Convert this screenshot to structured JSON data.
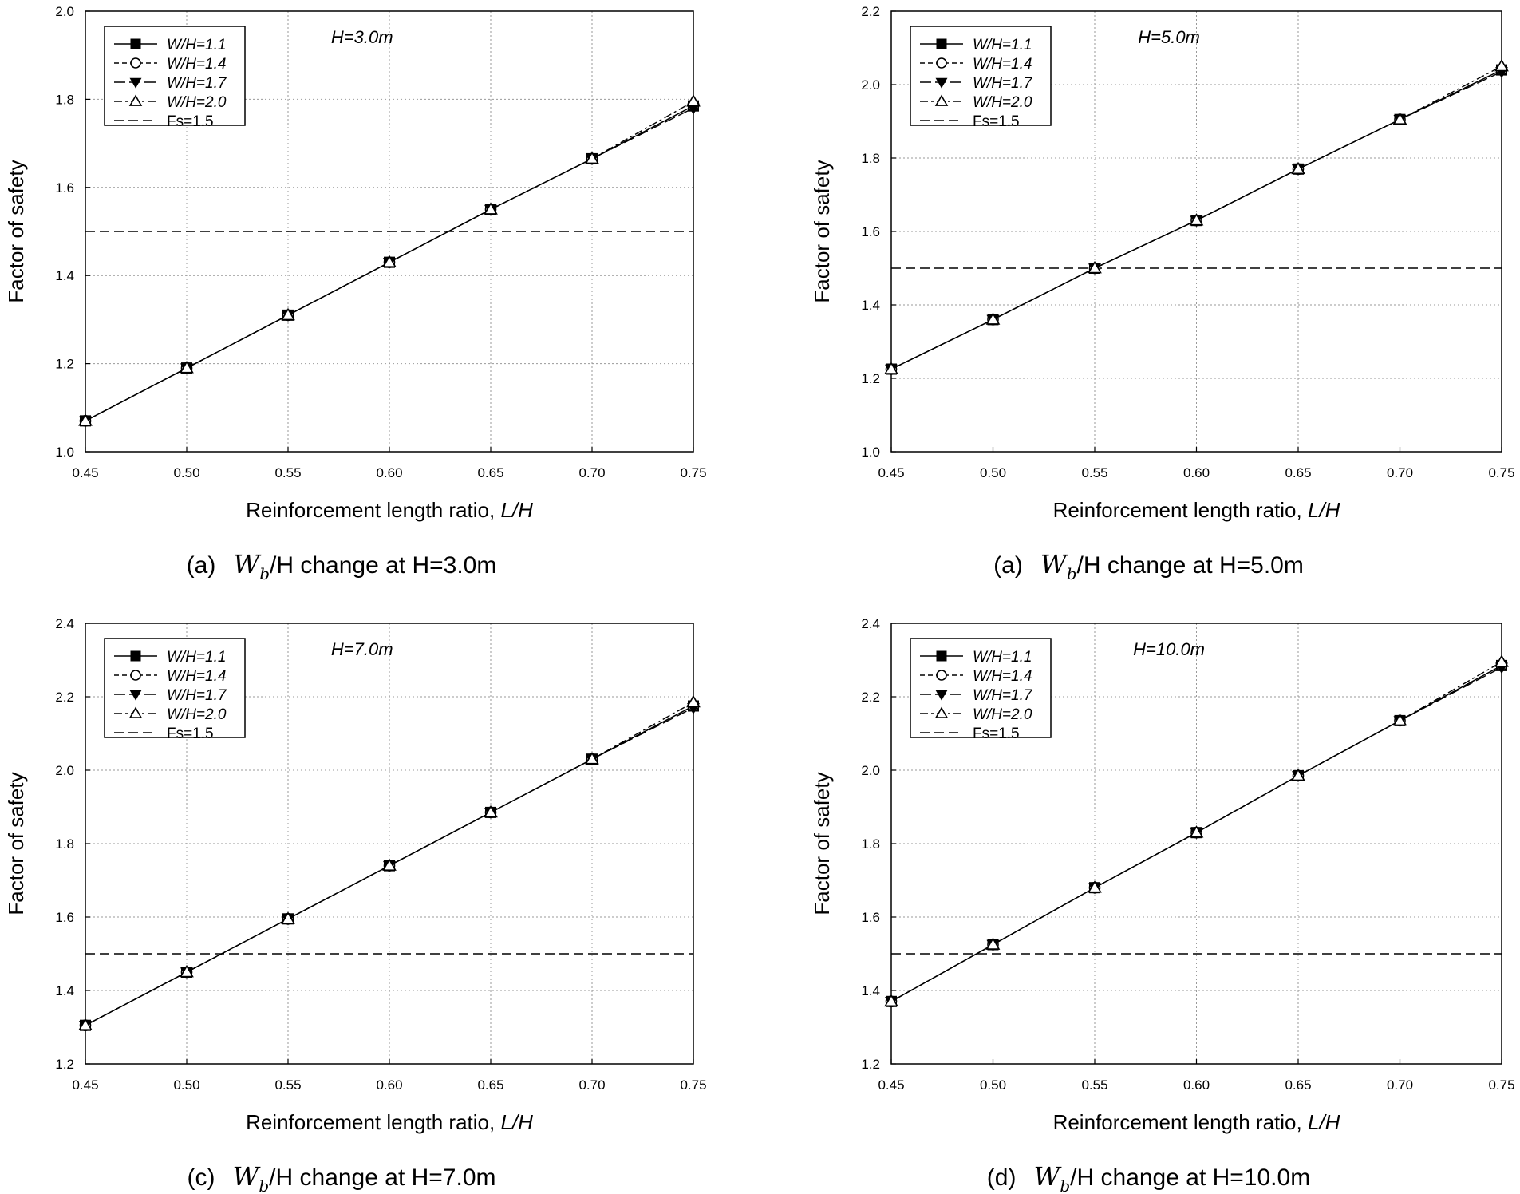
{
  "chart_data": [
    {
      "type": "line",
      "caption_prefix": "(a)",
      "caption_sub": "b",
      "caption_rest": "/H change at H=3.0m",
      "caption_w": "W",
      "height_label": "H=3.0m",
      "xlabel": "Reinforcement length ratio, ",
      "xlabel_italic": "L/H",
      "ylabel": "Factor of safety",
      "xlim": [
        0.45,
        0.75
      ],
      "ylim": [
        1.0,
        2.0
      ],
      "x_ticks": [
        "0.45",
        "0.50",
        "0.55",
        "0.60",
        "0.65",
        "0.70",
        "0.75"
      ],
      "y_ticks": [
        "1.0",
        "1.2",
        "1.4",
        "1.6",
        "1.8",
        "2.0"
      ],
      "x": [
        0.45,
        0.5,
        0.55,
        0.6,
        0.65,
        0.7,
        0.75
      ],
      "series": [
        {
          "name": "W/H=1.1",
          "marker": "square-filled",
          "values": [
            1.07,
            1.19,
            1.31,
            1.43,
            1.55,
            1.665,
            1.785
          ]
        },
        {
          "name": "W/H=1.4",
          "marker": "circle-open",
          "values": [
            1.07,
            1.19,
            1.31,
            1.43,
            1.55,
            1.665,
            1.785
          ]
        },
        {
          "name": "W/H=1.7",
          "marker": "triangle-down-filled",
          "values": [
            1.07,
            1.19,
            1.31,
            1.43,
            1.55,
            1.665,
            1.78
          ]
        },
        {
          "name": "W/H=2.0",
          "marker": "triangle-up-open",
          "values": [
            1.07,
            1.19,
            1.31,
            1.43,
            1.55,
            1.665,
            1.795
          ]
        }
      ],
      "reference": {
        "name": "Fs=1.5",
        "value": 1.5
      }
    },
    {
      "type": "line",
      "caption_prefix": "(a)",
      "caption_sub": "b",
      "caption_rest": "/H change at H=5.0m",
      "caption_w": "W",
      "height_label": "H=5.0m",
      "xlabel": "Reinforcement length ratio, ",
      "xlabel_italic": "L/H",
      "ylabel": "Factor of safety",
      "xlim": [
        0.45,
        0.75
      ],
      "ylim": [
        1.0,
        2.2
      ],
      "x_ticks": [
        "0.45",
        "0.50",
        "0.55",
        "0.60",
        "0.65",
        "0.70",
        "0.75"
      ],
      "y_ticks": [
        "1.0",
        "1.2",
        "1.4",
        "1.6",
        "1.8",
        "2.0",
        "2.2"
      ],
      "x": [
        0.45,
        0.5,
        0.55,
        0.6,
        0.65,
        0.7,
        0.75
      ],
      "series": [
        {
          "name": "W/H=1.1",
          "marker": "square-filled",
          "values": [
            1.225,
            1.36,
            1.5,
            1.63,
            1.77,
            1.905,
            2.04
          ]
        },
        {
          "name": "W/H=1.4",
          "marker": "circle-open",
          "values": [
            1.225,
            1.36,
            1.5,
            1.63,
            1.77,
            1.905,
            2.04
          ]
        },
        {
          "name": "W/H=1.7",
          "marker": "triangle-down-filled",
          "values": [
            1.225,
            1.36,
            1.5,
            1.63,
            1.77,
            1.905,
            2.035
          ]
        },
        {
          "name": "W/H=2.0",
          "marker": "triangle-up-open",
          "values": [
            1.225,
            1.36,
            1.5,
            1.63,
            1.77,
            1.905,
            2.05
          ]
        }
      ],
      "reference": {
        "name": "Fs=1.5",
        "value": 1.5
      }
    },
    {
      "type": "line",
      "caption_prefix": "(c)",
      "caption_sub": "b",
      "caption_rest": "/H change at H=7.0m",
      "caption_w": "W",
      "height_label": "H=7.0m",
      "xlabel": "Reinforcement length ratio, ",
      "xlabel_italic": "L/H",
      "ylabel": "Factor of safety",
      "xlim": [
        0.45,
        0.75
      ],
      "ylim": [
        1.2,
        2.4
      ],
      "x_ticks": [
        "0.45",
        "0.50",
        "0.55",
        "0.60",
        "0.65",
        "0.70",
        "0.75"
      ],
      "y_ticks": [
        "1.2",
        "1.4",
        "1.6",
        "1.8",
        "2.0",
        "2.2",
        "2.4"
      ],
      "x": [
        0.45,
        0.5,
        0.55,
        0.6,
        0.65,
        0.7,
        0.75
      ],
      "series": [
        {
          "name": "W/H=1.1",
          "marker": "square-filled",
          "values": [
            1.305,
            1.45,
            1.595,
            1.74,
            1.885,
            2.03,
            2.175
          ]
        },
        {
          "name": "W/H=1.4",
          "marker": "circle-open",
          "values": [
            1.305,
            1.45,
            1.595,
            1.74,
            1.885,
            2.03,
            2.175
          ]
        },
        {
          "name": "W/H=1.7",
          "marker": "triangle-down-filled",
          "values": [
            1.305,
            1.45,
            1.595,
            1.74,
            1.885,
            2.03,
            2.17
          ]
        },
        {
          "name": "W/H=2.0",
          "marker": "triangle-up-open",
          "values": [
            1.305,
            1.45,
            1.595,
            1.74,
            1.885,
            2.03,
            2.185
          ]
        }
      ],
      "reference": {
        "name": "Fs=1.5",
        "value": 1.5
      }
    },
    {
      "type": "line",
      "caption_prefix": "(d)",
      "caption_sub": "b",
      "caption_rest": "/H change at H=10.0m",
      "caption_w": "W",
      "height_label": "H=10.0m",
      "xlabel": "Reinforcement length ratio, ",
      "xlabel_italic": "L/H",
      "ylabel": "Factor of safety",
      "xlim": [
        0.45,
        0.75
      ],
      "ylim": [
        1.2,
        2.4
      ],
      "x_ticks": [
        "0.45",
        "0.50",
        "0.55",
        "0.60",
        "0.65",
        "0.70",
        "0.75"
      ],
      "y_ticks": [
        "1.2",
        "1.4",
        "1.6",
        "1.8",
        "2.0",
        "2.2",
        "2.4"
      ],
      "x": [
        0.45,
        0.5,
        0.55,
        0.6,
        0.65,
        0.7,
        0.75
      ],
      "series": [
        {
          "name": "W/H=1.1",
          "marker": "square-filled",
          "values": [
            1.37,
            1.525,
            1.68,
            1.83,
            1.985,
            2.135,
            2.285
          ]
        },
        {
          "name": "W/H=1.4",
          "marker": "circle-open",
          "values": [
            1.37,
            1.525,
            1.68,
            1.83,
            1.985,
            2.135,
            2.285
          ]
        },
        {
          "name": "W/H=1.7",
          "marker": "triangle-down-filled",
          "values": [
            1.37,
            1.525,
            1.68,
            1.83,
            1.985,
            2.135,
            2.28
          ]
        },
        {
          "name": "W/H=2.0",
          "marker": "triangle-up-open",
          "values": [
            1.37,
            1.525,
            1.68,
            1.83,
            1.985,
            2.135,
            2.295
          ]
        }
      ],
      "reference": {
        "name": "Fs=1.5",
        "value": 1.5
      }
    }
  ]
}
